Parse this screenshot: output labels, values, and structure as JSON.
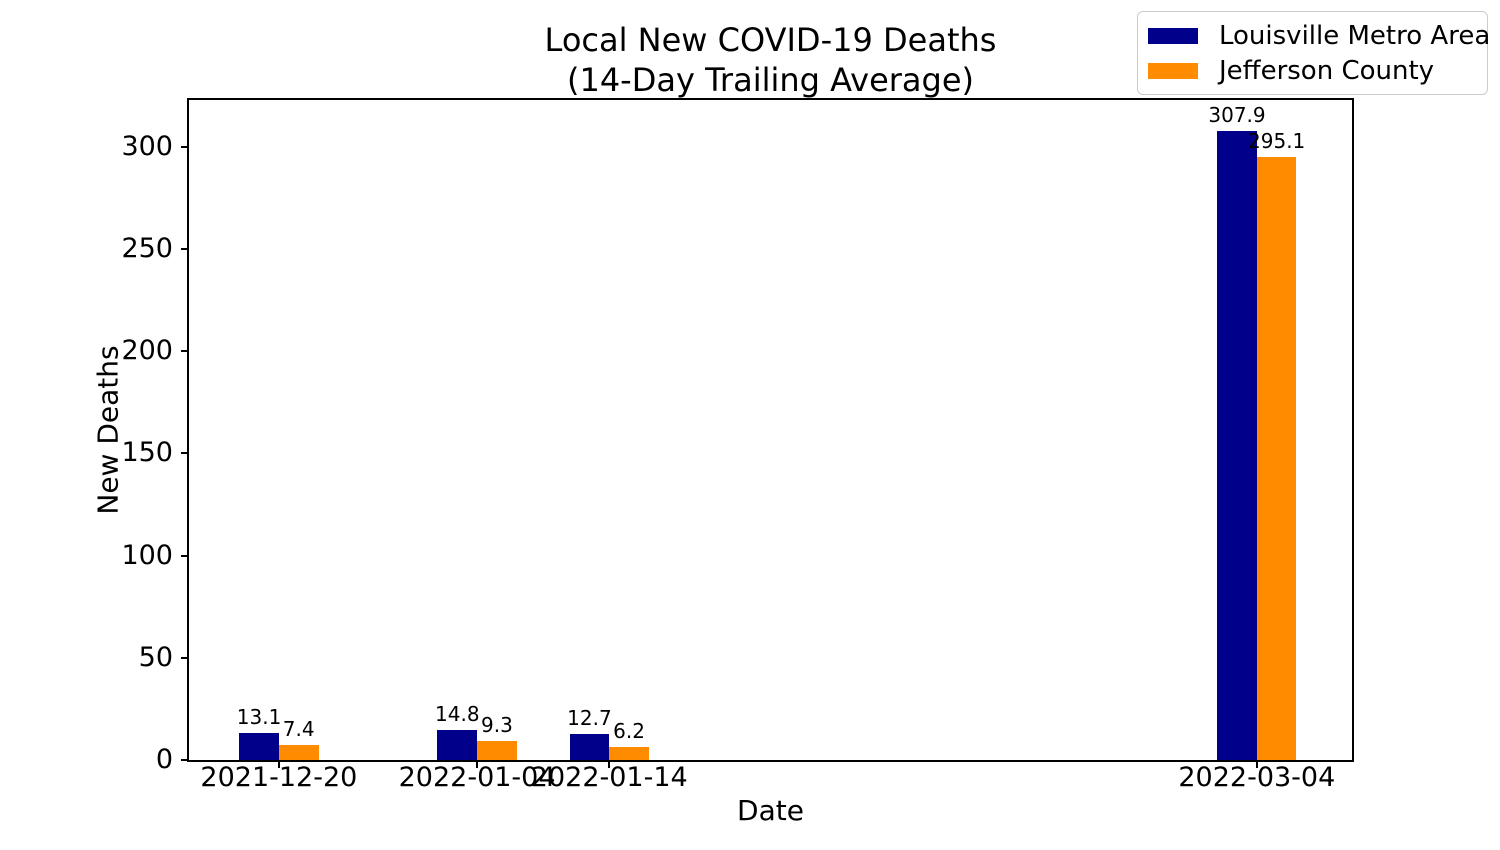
{
  "figure": {
    "title_line1": "Local New COVID-19 Deaths",
    "title_line2": "(14-Day Trailing Average)"
  },
  "chart_data": {
    "type": "bar",
    "title": "Local New COVID-19 Deaths (14-Day Trailing Average)",
    "xlabel": "Date",
    "ylabel": "New Deaths",
    "categories": [
      "2021-12-20",
      "2022-01-04",
      "2022-01-14",
      "2022-03-04"
    ],
    "category_day_offsets": [
      0,
      15,
      25,
      74
    ],
    "series": [
      {
        "name": "Louisville Metro Area",
        "color": "#00008B",
        "values": [
          13.1,
          14.8,
          12.7,
          307.9
        ]
      },
      {
        "name": "Jefferson County",
        "color": "#FF8C00",
        "values": [
          7.4,
          9.3,
          6.2,
          295.1
        ]
      }
    ],
    "value_label_format": "one-decimal",
    "y_ticks": [
      0,
      50,
      100,
      150,
      200,
      250,
      300
    ],
    "ylim": [
      0,
      323
    ],
    "xlim_days": [
      -6.8,
      81.2
    ],
    "bar_width_days": 3,
    "legend_position": "upper right",
    "grid": false
  }
}
